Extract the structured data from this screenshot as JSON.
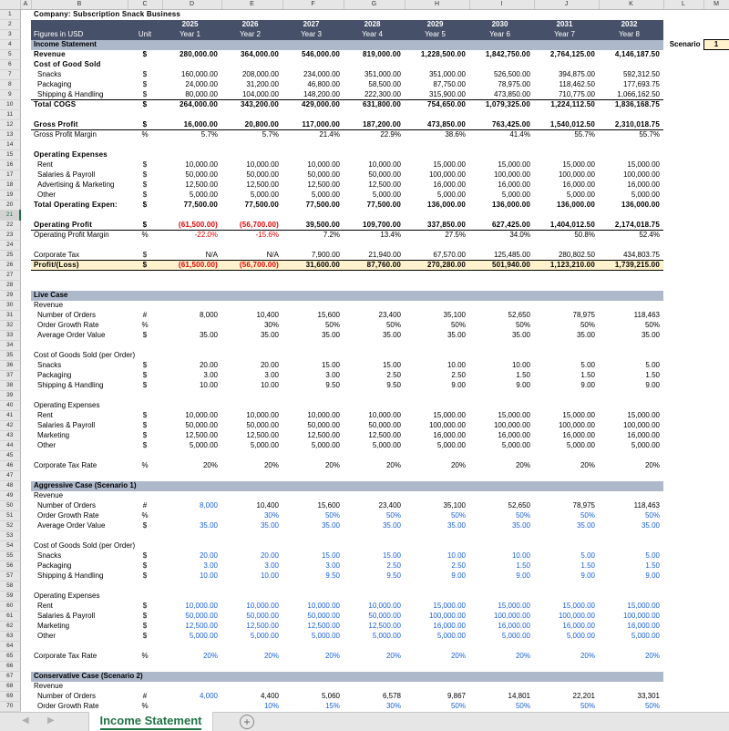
{
  "columns": [
    "A",
    "B",
    "C",
    "D",
    "E",
    "F",
    "G",
    "H",
    "I",
    "J",
    "K",
    "L",
    "M"
  ],
  "row_numbers": [
    1,
    2,
    3,
    4,
    5,
    6,
    7,
    8,
    9,
    10,
    11,
    12,
    13,
    14,
    15,
    16,
    17,
    18,
    19,
    20,
    21,
    22,
    23,
    24,
    25,
    26,
    27,
    28,
    29,
    30,
    31,
    32,
    33,
    34,
    35,
    36,
    37,
    38,
    39,
    40,
    41,
    42,
    43,
    44,
    45,
    46,
    47,
    48,
    49,
    50,
    51,
    52,
    53,
    54,
    55,
    56,
    57,
    58,
    59,
    60,
    61,
    62,
    63,
    64,
    65,
    66,
    67,
    68,
    69,
    70
  ],
  "selected_row": 21,
  "title": "Company: Subscription Snack Business",
  "header": {
    "figures_label": "Figures in USD",
    "unit_label": "Unit",
    "years": [
      "2025",
      "2026",
      "2027",
      "2028",
      "2029",
      "2030",
      "2031",
      "2032"
    ],
    "year_labels": [
      "Year 1",
      "Year 2",
      "Year 3",
      "Year 4",
      "Year 5",
      "Year 6",
      "Year 7",
      "Year 8"
    ]
  },
  "scenario": {
    "label": "Scenario",
    "value": "1"
  },
  "rows": [
    {
      "n": 4,
      "label": "Income Statement",
      "unit": "",
      "values": []
    },
    {
      "n": 5,
      "label": "Revenue",
      "unit": "$",
      "values": [
        "280,000.00",
        "364,000.00",
        "546,000.00",
        "819,000.00",
        "1,228,500.00",
        "1,842,750.00",
        "2,764,125.00",
        "4,146,187.50"
      ]
    },
    {
      "n": 6,
      "label": "Cost of Good Sold",
      "unit": "",
      "values": []
    },
    {
      "n": 7,
      "label": "Snacks",
      "unit": "$",
      "values": [
        "160,000.00",
        "208,000.00",
        "234,000.00",
        "351,000.00",
        "351,000.00",
        "526,500.00",
        "394,875.00",
        "592,312.50"
      ]
    },
    {
      "n": 8,
      "label": "Packaging",
      "unit": "$",
      "values": [
        "24,000.00",
        "31,200.00",
        "46,800.00",
        "58,500.00",
        "87,750.00",
        "78,975.00",
        "118,462.50",
        "177,693.75"
      ]
    },
    {
      "n": 9,
      "label": "Shipping & Handling",
      "unit": "$",
      "values": [
        "80,000.00",
        "104,000.00",
        "148,200.00",
        "222,300.00",
        "315,900.00",
        "473,850.00",
        "710,775.00",
        "1,066,162.50"
      ]
    },
    {
      "n": 10,
      "label": "Total COGS",
      "unit": "$",
      "values": [
        "264,000.00",
        "343,200.00",
        "429,000.00",
        "631,800.00",
        "754,650.00",
        "1,079,325.00",
        "1,224,112.50",
        "1,836,168.75"
      ]
    },
    {
      "n": 12,
      "label": "Gross Profit",
      "unit": "$",
      "values": [
        "16,000.00",
        "20,800.00",
        "117,000.00",
        "187,200.00",
        "473,850.00",
        "763,425.00",
        "1,540,012.50",
        "2,310,018.75"
      ]
    },
    {
      "n": 13,
      "label": "Gross Profit Margin",
      "unit": "%",
      "values": [
        "5.7%",
        "5.7%",
        "21.4%",
        "22.9%",
        "38.6%",
        "41.4%",
        "55.7%",
        "55.7%"
      ]
    },
    {
      "n": 15,
      "label": "Operating Expenses",
      "unit": "",
      "values": []
    },
    {
      "n": 16,
      "label": "Rent",
      "unit": "$",
      "values": [
        "10,000.00",
        "10,000.00",
        "10,000.00",
        "10,000.00",
        "15,000.00",
        "15,000.00",
        "15,000.00",
        "15,000.00"
      ]
    },
    {
      "n": 17,
      "label": "Salaries & Payroll",
      "unit": "$",
      "values": [
        "50,000.00",
        "50,000.00",
        "50,000.00",
        "50,000.00",
        "100,000.00",
        "100,000.00",
        "100,000.00",
        "100,000.00"
      ]
    },
    {
      "n": 18,
      "label": "Advertising & Marketing",
      "unit": "$",
      "values": [
        "12,500.00",
        "12,500.00",
        "12,500.00",
        "12,500.00",
        "16,000.00",
        "16,000.00",
        "16,000.00",
        "16,000.00"
      ]
    },
    {
      "n": 19,
      "label": "Other",
      "unit": "$",
      "values": [
        "5,000.00",
        "5,000.00",
        "5,000.00",
        "5,000.00",
        "5,000.00",
        "5,000.00",
        "5,000.00",
        "5,000.00"
      ]
    },
    {
      "n": 20,
      "label": "Total Operating Expen:",
      "unit": "$",
      "values": [
        "77,500.00",
        "77,500.00",
        "77,500.00",
        "77,500.00",
        "136,000.00",
        "136,000.00",
        "136,000.00",
        "136,000.00"
      ]
    },
    {
      "n": 22,
      "label": "Operating Profit",
      "unit": "$",
      "values": [
        "(61,500.00)",
        "(56,700.00)",
        "39,500.00",
        "109,700.00",
        "337,850.00",
        "627,425.00",
        "1,404,012.50",
        "2,174,018.75"
      ]
    },
    {
      "n": 23,
      "label": "Operating Profit Margin",
      "unit": "%",
      "values": [
        "-22.0%",
        "-15.6%",
        "7.2%",
        "13.4%",
        "27.5%",
        "34.0%",
        "50.8%",
        "52.4%"
      ]
    },
    {
      "n": 25,
      "label": "Corporate Tax",
      "unit": "$",
      "values": [
        "N/A",
        "N/A",
        "7,900.00",
        "21,940.00",
        "67,570.00",
        "125,485.00",
        "280,802.50",
        "434,803.75"
      ]
    },
    {
      "n": 26,
      "label": "Profit/(Loss)",
      "unit": "$",
      "values": [
        "(61,500.00)",
        "(56,700.00)",
        "31,600.00",
        "87,760.00",
        "270,280.00",
        "501,940.00",
        "1,123,210.00",
        "1,739,215.00"
      ]
    },
    {
      "n": 29,
      "label": "Live Case",
      "unit": "",
      "values": []
    },
    {
      "n": 30,
      "label": "Revenue",
      "unit": "",
      "values": []
    },
    {
      "n": 31,
      "label": "Number of Orders",
      "unit": "#",
      "values": [
        "8,000",
        "10,400",
        "15,600",
        "23,400",
        "35,100",
        "52,650",
        "78,975",
        "118,463"
      ]
    },
    {
      "n": 32,
      "label": "Order Growth Rate",
      "unit": "%",
      "values": [
        "",
        "30%",
        "50%",
        "50%",
        "50%",
        "50%",
        "50%",
        "50%"
      ]
    },
    {
      "n": 33,
      "label": "Average Order Value",
      "unit": "$",
      "values": [
        "35.00",
        "35.00",
        "35.00",
        "35.00",
        "35.00",
        "35.00",
        "35.00",
        "35.00"
      ]
    },
    {
      "n": 35,
      "label": "Cost of Goods Sold (per Order)",
      "unit": "",
      "values": []
    },
    {
      "n": 36,
      "label": "Snacks",
      "unit": "$",
      "values": [
        "20.00",
        "20.00",
        "15.00",
        "15.00",
        "10.00",
        "10.00",
        "5.00",
        "5.00"
      ]
    },
    {
      "n": 37,
      "label": "Packaging",
      "unit": "$",
      "values": [
        "3.00",
        "3.00",
        "3.00",
        "2.50",
        "2.50",
        "1.50",
        "1.50",
        "1.50"
      ]
    },
    {
      "n": 38,
      "label": "Shipping & Handling",
      "unit": "$",
      "values": [
        "10.00",
        "10.00",
        "9.50",
        "9.50",
        "9.00",
        "9.00",
        "9.00",
        "9.00"
      ]
    },
    {
      "n": 40,
      "label": "Operating Expenses",
      "unit": "",
      "values": []
    },
    {
      "n": 41,
      "label": "Rent",
      "unit": "$",
      "values": [
        "10,000.00",
        "10,000.00",
        "10,000.00",
        "10,000.00",
        "15,000.00",
        "15,000.00",
        "15,000.00",
        "15,000.00"
      ]
    },
    {
      "n": 42,
      "label": "Salaries & Payroll",
      "unit": "$",
      "values": [
        "50,000.00",
        "50,000.00",
        "50,000.00",
        "50,000.00",
        "100,000.00",
        "100,000.00",
        "100,000.00",
        "100,000.00"
      ]
    },
    {
      "n": 43,
      "label": "Marketing",
      "unit": "$",
      "values": [
        "12,500.00",
        "12,500.00",
        "12,500.00",
        "12,500.00",
        "16,000.00",
        "16,000.00",
        "16,000.00",
        "16,000.00"
      ]
    },
    {
      "n": 44,
      "label": "Other",
      "unit": "$",
      "values": [
        "5,000.00",
        "5,000.00",
        "5,000.00",
        "5,000.00",
        "5,000.00",
        "5,000.00",
        "5,000.00",
        "5,000.00"
      ]
    },
    {
      "n": 46,
      "label": "Corporate Tax Rate",
      "unit": "%",
      "values": [
        "20%",
        "20%",
        "20%",
        "20%",
        "20%",
        "20%",
        "20%",
        "20%"
      ]
    },
    {
      "n": 48,
      "label": "Aggressive Case (Scenario 1)",
      "unit": "",
      "values": []
    },
    {
      "n": 49,
      "label": "Revenue",
      "unit": "",
      "values": []
    },
    {
      "n": 50,
      "label": "Number of Orders",
      "unit": "#",
      "values": [
        "8,000",
        "10,400",
        "15,600",
        "23,400",
        "35,100",
        "52,650",
        "78,975",
        "118,463"
      ]
    },
    {
      "n": 51,
      "label": "Order Growth Rate",
      "unit": "%",
      "values": [
        "",
        "30%",
        "50%",
        "50%",
        "50%",
        "50%",
        "50%",
        "50%"
      ]
    },
    {
      "n": 52,
      "label": "Average Order Value",
      "unit": "$",
      "values": [
        "35.00",
        "35.00",
        "35.00",
        "35.00",
        "35.00",
        "35.00",
        "35.00",
        "35.00"
      ]
    },
    {
      "n": 54,
      "label": "Cost of Goods Sold (per Order)",
      "unit": "",
      "values": []
    },
    {
      "n": 55,
      "label": "Snacks",
      "unit": "$",
      "values": [
        "20.00",
        "20.00",
        "15.00",
        "15.00",
        "10.00",
        "10.00",
        "5.00",
        "5.00"
      ]
    },
    {
      "n": 56,
      "label": "Packaging",
      "unit": "$",
      "values": [
        "3.00",
        "3.00",
        "3.00",
        "2.50",
        "2.50",
        "1.50",
        "1.50",
        "1.50"
      ]
    },
    {
      "n": 57,
      "label": "Shipping & Handling",
      "unit": "$",
      "values": [
        "10.00",
        "10.00",
        "9.50",
        "9.50",
        "9.00",
        "9.00",
        "9.00",
        "9.00"
      ]
    },
    {
      "n": 59,
      "label": "Operating Expenses",
      "unit": "",
      "values": []
    },
    {
      "n": 60,
      "label": "Rent",
      "unit": "$",
      "values": [
        "10,000.00",
        "10,000.00",
        "10,000.00",
        "10,000.00",
        "15,000.00",
        "15,000.00",
        "15,000.00",
        "15,000.00"
      ]
    },
    {
      "n": 61,
      "label": "Salaries & Payroll",
      "unit": "$",
      "values": [
        "50,000.00",
        "50,000.00",
        "50,000.00",
        "50,000.00",
        "100,000.00",
        "100,000.00",
        "100,000.00",
        "100,000.00"
      ]
    },
    {
      "n": 62,
      "label": "Marketing",
      "unit": "$",
      "values": [
        "12,500.00",
        "12,500.00",
        "12,500.00",
        "12,500.00",
        "16,000.00",
        "16,000.00",
        "16,000.00",
        "16,000.00"
      ]
    },
    {
      "n": 63,
      "label": "Other",
      "unit": "$",
      "values": [
        "5,000.00",
        "5,000.00",
        "5,000.00",
        "5,000.00",
        "5,000.00",
        "5,000.00",
        "5,000.00",
        "5,000.00"
      ]
    },
    {
      "n": 65,
      "label": "Corporate Tax Rate",
      "unit": "%",
      "values": [
        "20%",
        "20%",
        "20%",
        "20%",
        "20%",
        "20%",
        "20%",
        "20%"
      ]
    },
    {
      "n": 67,
      "label": "Conservative Case (Scenario 2)",
      "unit": "",
      "values": []
    },
    {
      "n": 68,
      "label": "Revenue",
      "unit": "",
      "values": []
    },
    {
      "n": 69,
      "label": "Number of Orders",
      "unit": "#",
      "values": [
        "4,000",
        "4,400",
        "5,060",
        "6,578",
        "9,867",
        "14,801",
        "22,201",
        "33,301"
      ]
    },
    {
      "n": 70,
      "label": "Order Growth Rate",
      "unit": "%",
      "values": [
        "",
        "10%",
        "15%",
        "30%",
        "50%",
        "50%",
        "50%",
        "50%"
      ]
    }
  ],
  "sheet_tabs": [
    {
      "label": "Income Statement",
      "active": true
    }
  ],
  "colors": {
    "header_band": "#475069",
    "section_band": "#adb8ca",
    "highlight": "#fff2cc",
    "negative": "#e00000",
    "input": "#1a5fd8",
    "tab_accent": "#217346"
  }
}
